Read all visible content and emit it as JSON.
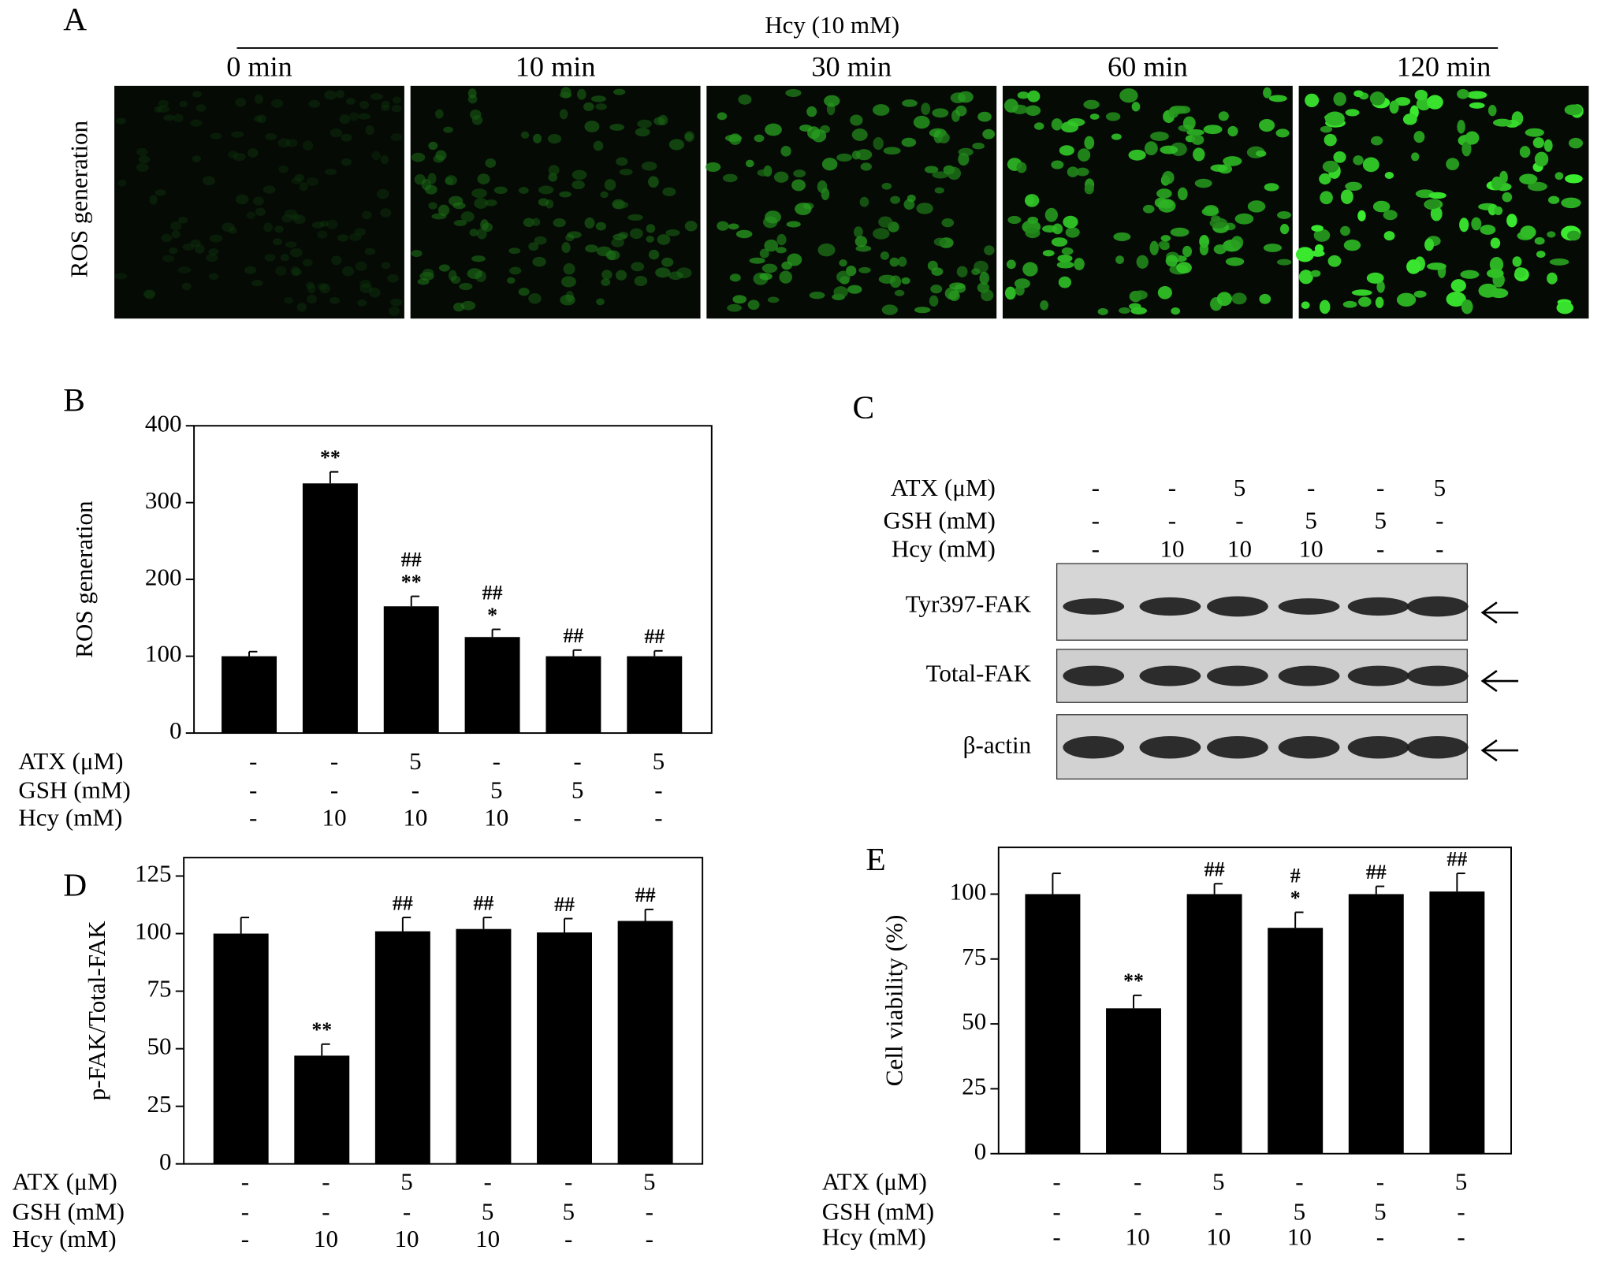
{
  "panel_a": {
    "letter": "A",
    "header": "Hcy (10 mM)",
    "times": [
      "0 min",
      "10 min",
      "30 min",
      "60 min",
      "120 min"
    ],
    "row_label": "ROS generation"
  },
  "panel_c": {
    "letter": "C",
    "treatments": [
      {
        "label": "ATX (μM)",
        "values": [
          "-",
          "-",
          "5",
          "-",
          "-",
          "5"
        ]
      },
      {
        "label": "GSH (mM)",
        "values": [
          "-",
          "-",
          "-",
          "5",
          "5",
          "-"
        ]
      },
      {
        "label": "Hcy (mM)",
        "values": [
          "-",
          "10",
          "10",
          "10",
          "-",
          "-"
        ]
      }
    ],
    "blots": [
      "Tyr397-FAK",
      "Total-FAK",
      "β-actin"
    ]
  },
  "chart_data": [
    {
      "type": "bar",
      "panel": "B",
      "ylabel": "ROS generation",
      "values": [
        100,
        325,
        165,
        125,
        100,
        100
      ],
      "errors": [
        6,
        15,
        13,
        10,
        8,
        7
      ],
      "significance": [
        [],
        [
          "**"
        ],
        [
          "##",
          "**"
        ],
        [
          "##",
          "*"
        ],
        [
          "##"
        ],
        [
          "##"
        ]
      ],
      "ylim": [
        0,
        400
      ],
      "yticks": [
        0,
        100,
        200,
        300,
        400
      ],
      "color": "#000000",
      "treatments": [
        {
          "label": "ATX (μM)",
          "values": [
            "-",
            "-",
            "5",
            "-",
            "-",
            "5"
          ]
        },
        {
          "label": "GSH (mM)",
          "values": [
            "-",
            "-",
            "-",
            "5",
            "5",
            "-"
          ]
        },
        {
          "label": "Hcy (mM)",
          "values": [
            "-",
            "10",
            "10",
            "10",
            "-",
            "-"
          ]
        }
      ]
    },
    {
      "type": "bar",
      "panel": "D",
      "ylabel": "p-FAK/Total-FAK",
      "values": [
        100,
        47,
        101,
        102,
        100.5,
        105.5
      ],
      "errors": [
        7,
        5,
        6,
        5,
        6,
        5
      ],
      "significance": [
        [],
        [
          "**"
        ],
        [
          "##"
        ],
        [
          "##"
        ],
        [
          "##"
        ],
        [
          "##"
        ]
      ],
      "ylim": [
        0,
        133
      ],
      "yticks": [
        0,
        25,
        50,
        75,
        100,
        125
      ],
      "color": "#000000",
      "treatments": [
        {
          "label": "ATX (μM)",
          "values": [
            "-",
            "-",
            "5",
            "-",
            "-",
            "5"
          ]
        },
        {
          "label": "GSH (mM)",
          "values": [
            "-",
            "-",
            "-",
            "5",
            "5",
            "-"
          ]
        },
        {
          "label": "Hcy (mM)",
          "values": [
            "-",
            "10",
            "10",
            "10",
            "-",
            "-"
          ]
        }
      ]
    },
    {
      "type": "bar",
      "panel": "E",
      "ylabel": "Cell viability (%)",
      "values": [
        100,
        56,
        100,
        87,
        100,
        101
      ],
      "errors": [
        8,
        5,
        4,
        6,
        3,
        7
      ],
      "significance": [
        [],
        [
          "**"
        ],
        [
          "##"
        ],
        [
          "#",
          "*"
        ],
        [
          "##"
        ],
        [
          "##"
        ]
      ],
      "ylim": [
        0,
        118
      ],
      "yticks": [
        0,
        25,
        50,
        75,
        100
      ],
      "color": "#000000",
      "treatments": [
        {
          "label": "ATX (μM)",
          "values": [
            "-",
            "-",
            "5",
            "-",
            "-",
            "5"
          ]
        },
        {
          "label": "GSH (mM)",
          "values": [
            "-",
            "-",
            "-",
            "5",
            "5",
            "-"
          ]
        },
        {
          "label": "Hcy (mM)",
          "values": [
            "-",
            "10",
            "10",
            "10",
            "-",
            "-"
          ]
        }
      ]
    }
  ]
}
